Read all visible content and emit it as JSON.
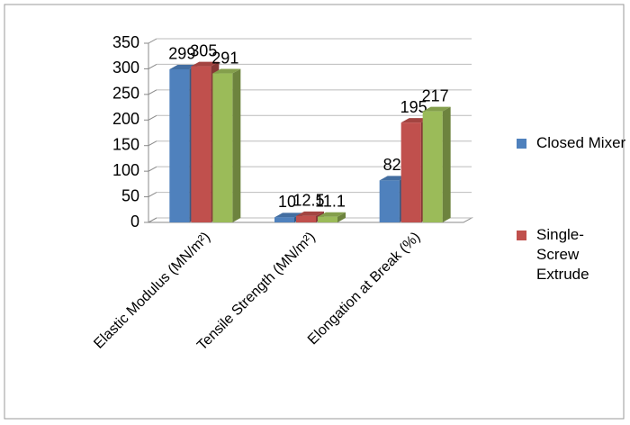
{
  "chart_data": {
    "type": "bar3d",
    "categories": [
      "Elastic Modulus (MN/m²)",
      "Tensile Strength (MN/m²)",
      "Elongation at Break (%)"
    ],
    "series": [
      {
        "name": "Closed Mixer",
        "color": "#4f81bd",
        "values": [
          299,
          10,
          82
        ]
      },
      {
        "name": "Single-Screw Extrude",
        "color": "#c0504d",
        "values": [
          305,
          12.5,
          195
        ]
      },
      {
        "color": "#9bbb59",
        "values": [
          291,
          11.1,
          217
        ]
      }
    ],
    "ylim": [
      0,
      350
    ],
    "yticks": [
      0,
      50,
      100,
      150,
      200,
      250,
      300,
      350
    ],
    "grid": true,
    "legend": "right"
  }
}
